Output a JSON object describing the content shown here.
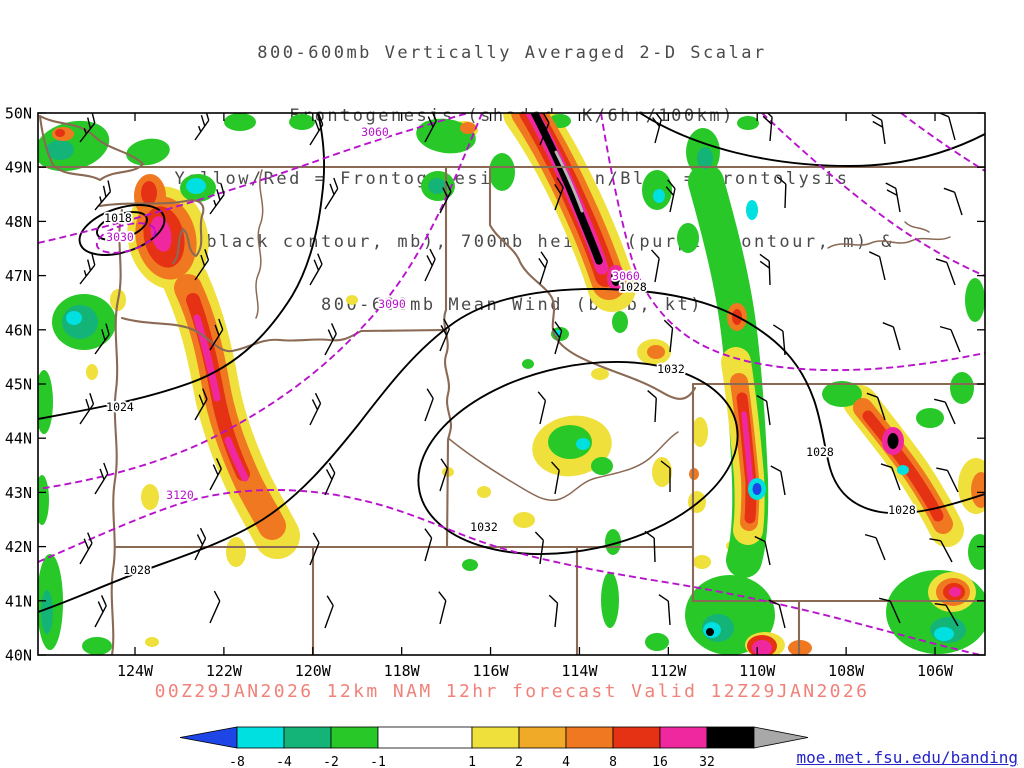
{
  "title": {
    "lines": [
      "800-600mb Vertically Averaged 2-D Scalar",
      "Frontogenesis (shaded, K/6hr/100km)",
      "Yellow/Red = Frontogenesis;  Green/Blue = Frontolysis",
      "MSLP (black contour, mb), 700mb height (purple contour, m) &",
      "800-600mb Mean Wind (barb, kt)"
    ]
  },
  "map": {
    "lat_labels": [
      "50N",
      "49N",
      "48N",
      "47N",
      "46N",
      "45N",
      "44N",
      "43N",
      "42N",
      "41N",
      "40N"
    ],
    "lon_labels": [
      "124W",
      "122W",
      "120W",
      "118W",
      "116W",
      "114W",
      "112W",
      "110W",
      "108W",
      "106W"
    ],
    "mslp_labels": [
      "1018",
      "1024",
      "1028",
      "1032",
      "1032",
      "1028",
      "1028",
      "1028"
    ],
    "height_labels": [
      "3030",
      "3060",
      "3090",
      "3120",
      "3060"
    ],
    "wind_barbs": [
      [
        80,
        142,
        -52,
        3
      ],
      [
        195,
        140,
        -55,
        3
      ],
      [
        310,
        145,
        -58,
        2
      ],
      [
        425,
        142,
        -62,
        2
      ],
      [
        540,
        145,
        -68,
        2
      ],
      [
        655,
        143,
        -75,
        2
      ],
      [
        770,
        141,
        -85,
        2
      ],
      [
        885,
        144,
        -98,
        2
      ],
      [
        955,
        140,
        -105,
        1
      ],
      [
        95,
        210,
        -50,
        3
      ],
      [
        210,
        214,
        -54,
        3
      ],
      [
        325,
        209,
        -58,
        2
      ],
      [
        440,
        213,
        -63,
        2
      ],
      [
        555,
        210,
        -70,
        2
      ],
      [
        670,
        212,
        -78,
        2
      ],
      [
        785,
        208,
        -88,
        1
      ],
      [
        900,
        212,
        -100,
        2
      ],
      [
        962,
        215,
        -108,
        1
      ],
      [
        80,
        284,
        -52,
        3
      ],
      [
        195,
        280,
        -56,
        2
      ],
      [
        310,
        285,
        -60,
        2
      ],
      [
        425,
        281,
        -65,
        2
      ],
      [
        540,
        284,
        -72,
        2
      ],
      [
        655,
        282,
        -80,
        1
      ],
      [
        770,
        285,
        -92,
        2
      ],
      [
        885,
        280,
        -103,
        1
      ],
      [
        955,
        285,
        -110,
        1
      ],
      [
        95,
        354,
        -54,
        2
      ],
      [
        210,
        350,
        -58,
        2
      ],
      [
        325,
        355,
        -62,
        2
      ],
      [
        440,
        351,
        -67,
        2
      ],
      [
        555,
        354,
        -74,
        2
      ],
      [
        670,
        352,
        -84,
        1
      ],
      [
        785,
        355,
        -95,
        1
      ],
      [
        900,
        350,
        -106,
        1
      ],
      [
        960,
        352,
        -112,
        1
      ],
      [
        80,
        424,
        -56,
        2
      ],
      [
        195,
        420,
        -60,
        2
      ],
      [
        310,
        425,
        -64,
        2
      ],
      [
        425,
        421,
        -70,
        1
      ],
      [
        540,
        424,
        -77,
        1
      ],
      [
        655,
        422,
        -87,
        1
      ],
      [
        770,
        425,
        -98,
        1
      ],
      [
        885,
        420,
        -108,
        1
      ],
      [
        955,
        424,
        -114,
        1
      ],
      [
        95,
        494,
        -58,
        2
      ],
      [
        210,
        490,
        -62,
        2
      ],
      [
        325,
        495,
        -66,
        2
      ],
      [
        440,
        491,
        -72,
        1
      ],
      [
        555,
        494,
        -80,
        1
      ],
      [
        670,
        492,
        -90,
        1
      ],
      [
        785,
        495,
        -100,
        1
      ],
      [
        900,
        490,
        -110,
        1
      ],
      [
        958,
        492,
        -116,
        1
      ],
      [
        80,
        564,
        -60,
        2
      ],
      [
        195,
        560,
        -64,
        2
      ],
      [
        310,
        565,
        -68,
        1
      ],
      [
        425,
        561,
        -74,
        1
      ],
      [
        540,
        564,
        -82,
        1
      ],
      [
        655,
        562,
        -92,
        1
      ],
      [
        770,
        565,
        -102,
        1
      ],
      [
        885,
        560,
        -112,
        1
      ],
      [
        952,
        562,
        -118,
        1
      ],
      [
        95,
        627,
        -62,
        2
      ],
      [
        210,
        623,
        -66,
        1
      ],
      [
        325,
        628,
        -70,
        1
      ],
      [
        440,
        624,
        -76,
        1
      ],
      [
        555,
        627,
        -84,
        1
      ],
      [
        670,
        625,
        -94,
        1
      ],
      [
        785,
        628,
        -104,
        1
      ],
      [
        900,
        623,
        -114,
        1
      ],
      [
        958,
        626,
        -120,
        1
      ]
    ]
  },
  "footer": {
    "text": "00Z29JAN2026 12km NAM 12hr forecast Valid 12Z29JAN2026"
  },
  "colorbar": {
    "tick_labels": [
      "-8",
      "-4",
      "-2",
      "-1",
      "1",
      "2",
      "4",
      "8",
      "16",
      "32"
    ],
    "colors": [
      "#1e46e6",
      "#00e0e0",
      "#14b478",
      "#28c828",
      "#ffffff",
      "#f0e03c",
      "#f0aa28",
      "#f07820",
      "#e63214",
      "#f028a0",
      "#000000",
      "#a8a8a8"
    ]
  },
  "credit": {
    "link_text": "moe.met.fsu.edu/banding"
  }
}
